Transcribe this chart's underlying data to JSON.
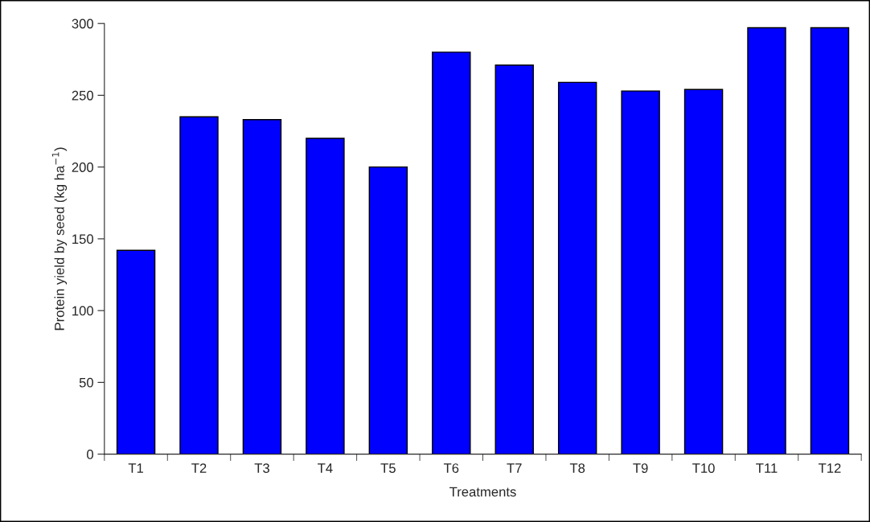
{
  "chart_data": {
    "type": "bar",
    "xlabel": "Treatments",
    "ylabel": "Protein yield by seed (kg ha$^{−1}$)",
    "categories": [
      "T1",
      "T2",
      "T3",
      "T4",
      "T5",
      "T6",
      "T7",
      "T8",
      "T9",
      "T10",
      "T11",
      "T12"
    ],
    "values": [
      142,
      235,
      233,
      220,
      200,
      280,
      271,
      259,
      253,
      254,
      297,
      297
    ],
    "color": "#0000ff",
    "ylim": [
      0,
      300
    ],
    "yticks": [
      0,
      50,
      100,
      150,
      200,
      250,
      300
    ],
    "grid": false,
    "legend": false
  }
}
